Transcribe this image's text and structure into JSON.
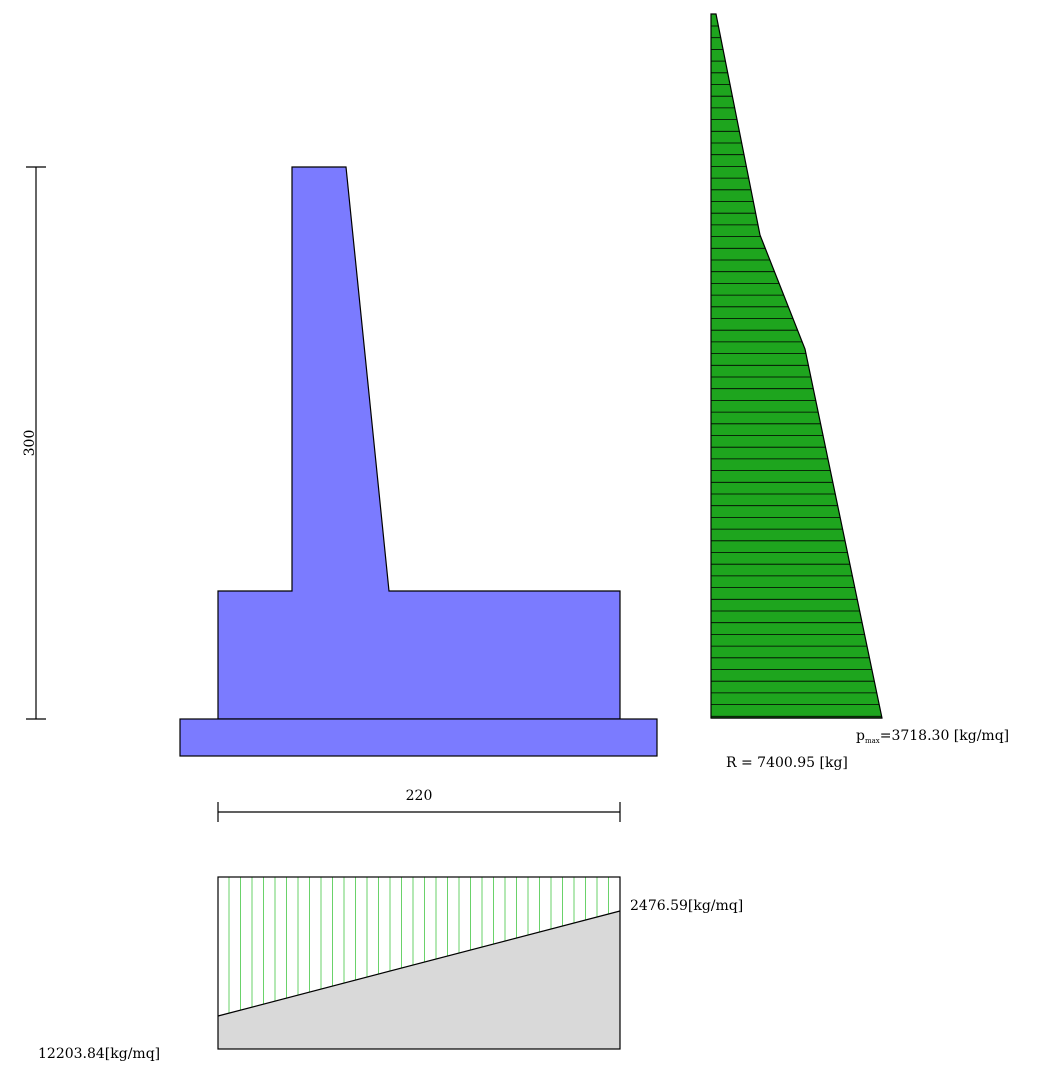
{
  "dimensions": {
    "height_label": "300",
    "width_label": "220"
  },
  "earth_pressure": {
    "pmax_main": "p",
    "pmax_subscript": "max",
    "pmax_value": "=3718.30 [kg/mq]",
    "resultant": "R = 7400.95 [kg]"
  },
  "soil_pressure": {
    "left_value": "12203.84[kg/mq]",
    "right_value": "2476.59[kg/mq]"
  },
  "colors": {
    "wall_fill": "#7b7bff",
    "pressure_fill": "#1ea51e",
    "soil_hatch": "#6ad26a",
    "soil_base": "#d9d9d9"
  }
}
